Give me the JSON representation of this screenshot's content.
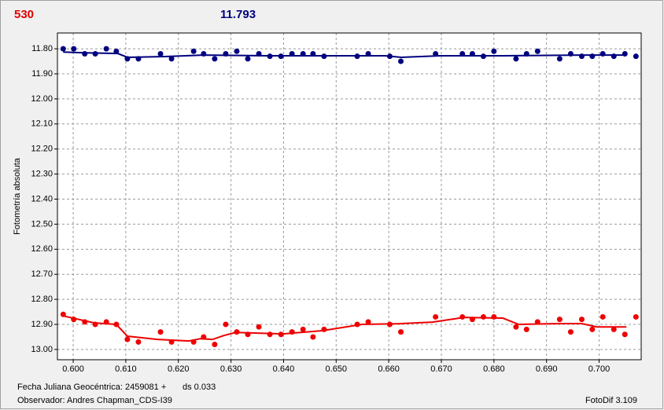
{
  "chart_data": {
    "type": "scatter",
    "header_left": "530",
    "header_left_color": "#e00000",
    "header_right": "11.793",
    "header_right_color": "#00007f",
    "y_label": "Fotometría absoluta",
    "footer_date": "Fecha Juliana Geocéntrica: 2459081 +",
    "footer_ds": "ds 0.033",
    "footer_observer": "Observador: Andres Chapman_CDS-I39",
    "footer_software": "FotoDif 3.109",
    "xlim": [
      0.597,
      0.708
    ],
    "ylim": [
      13.041,
      11.737
    ],
    "grid": true,
    "xticks": [
      {
        "value": 0.6,
        "label": "0.600"
      },
      {
        "value": 0.61,
        "label": "0.610"
      },
      {
        "value": 0.62,
        "label": "0.620"
      },
      {
        "value": 0.63,
        "label": "0.630"
      },
      {
        "value": 0.64,
        "label": "0.640"
      },
      {
        "value": 0.65,
        "label": "0.650"
      },
      {
        "value": 0.66,
        "label": "0.660"
      },
      {
        "value": 0.67,
        "label": "0.670"
      },
      {
        "value": 0.68,
        "label": "0.680"
      },
      {
        "value": 0.69,
        "label": "0.690"
      },
      {
        "value": 0.7,
        "label": "0.700"
      }
    ],
    "yticks": [
      {
        "value": 11.8,
        "label": "11.80"
      },
      {
        "value": 11.9,
        "label": "11.90"
      },
      {
        "value": 12.0,
        "label": "12.00"
      },
      {
        "value": 12.1,
        "label": "12.10"
      },
      {
        "value": 12.2,
        "label": "12.20"
      },
      {
        "value": 12.3,
        "label": "12.30"
      },
      {
        "value": 12.4,
        "label": "12.40"
      },
      {
        "value": 12.5,
        "label": "12.50"
      },
      {
        "value": 12.6,
        "label": "12.60"
      },
      {
        "value": 12.7,
        "label": "12.70"
      },
      {
        "value": 12.8,
        "label": "12.80"
      },
      {
        "value": 12.9,
        "label": "12.90"
      },
      {
        "value": 13.0,
        "label": "13.00"
      }
    ],
    "series": [
      {
        "style": "markers",
        "color": "#00007f",
        "x": [
          0.5981,
          0.6001,
          0.6022,
          0.6042,
          0.6063,
          0.6082,
          0.6103,
          0.6124,
          0.6166,
          0.6187,
          0.6229,
          0.6248,
          0.6269,
          0.629,
          0.6311,
          0.6332,
          0.6353,
          0.6374,
          0.6395,
          0.6416,
          0.6437,
          0.6456,
          0.6477,
          0.654,
          0.6561,
          0.6602,
          0.6623,
          0.6689,
          0.674,
          0.6759,
          0.678,
          0.68,
          0.6842,
          0.6862,
          0.6883,
          0.6925,
          0.6946,
          0.6967,
          0.6987,
          0.7007,
          0.7028,
          0.7049,
          0.707
        ],
        "values": [
          11.8,
          11.8,
          11.82,
          11.82,
          11.8,
          11.81,
          11.84,
          11.84,
          11.82,
          11.84,
          11.81,
          11.82,
          11.84,
          11.82,
          11.81,
          11.84,
          11.82,
          11.83,
          11.83,
          11.82,
          11.82,
          11.82,
          11.83,
          11.83,
          11.82,
          11.83,
          11.85,
          11.82,
          11.82,
          11.82,
          11.83,
          11.81,
          11.84,
          11.82,
          11.81,
          11.84,
          11.82,
          11.83,
          11.83,
          11.82,
          11.83,
          11.82,
          11.83
        ]
      },
      {
        "style": "markers",
        "color": "#ee0000",
        "x": [
          0.5981,
          0.6001,
          0.6022,
          0.6042,
          0.6063,
          0.6082,
          0.6103,
          0.6124,
          0.6166,
          0.6187,
          0.6229,
          0.6248,
          0.6269,
          0.629,
          0.6311,
          0.6332,
          0.6353,
          0.6374,
          0.6395,
          0.6416,
          0.6437,
          0.6456,
          0.6477,
          0.654,
          0.6561,
          0.6602,
          0.6623,
          0.6689,
          0.674,
          0.6759,
          0.678,
          0.68,
          0.6842,
          0.6862,
          0.6883,
          0.6925,
          0.6946,
          0.6967,
          0.6987,
          0.7007,
          0.7028,
          0.7049,
          0.707
        ],
        "values": [
          12.86,
          12.88,
          12.89,
          12.9,
          12.89,
          12.9,
          12.96,
          12.97,
          12.93,
          12.97,
          12.97,
          12.95,
          12.98,
          12.9,
          12.93,
          12.94,
          12.91,
          12.94,
          12.94,
          12.93,
          12.92,
          12.95,
          12.92,
          12.9,
          12.89,
          12.9,
          12.93,
          12.87,
          12.87,
          12.88,
          12.87,
          12.87,
          12.91,
          12.92,
          12.89,
          12.88,
          12.93,
          12.88,
          12.92,
          12.87,
          12.92,
          12.94,
          12.87
        ]
      },
      {
        "style": "line",
        "color": "#00007f",
        "x": [
          0.5981,
          0.6022,
          0.6085,
          0.6103,
          0.6175,
          0.625,
          0.6369,
          0.6489,
          0.6593,
          0.6623,
          0.6698,
          0.6817,
          0.6967,
          0.7052
        ],
        "values": [
          11.813,
          11.816,
          11.819,
          11.834,
          11.831,
          11.825,
          11.828,
          11.828,
          11.828,
          11.834,
          11.828,
          11.828,
          11.825,
          11.825
        ]
      },
      {
        "style": "line",
        "color": "#ee0000",
        "x": [
          0.5981,
          0.604,
          0.6082,
          0.6103,
          0.616,
          0.622,
          0.6242,
          0.6265,
          0.6287,
          0.6309,
          0.6399,
          0.6474,
          0.6549,
          0.6623,
          0.6683,
          0.6743,
          0.6817,
          0.6847,
          0.6922,
          0.6967,
          0.6996,
          0.7052
        ],
        "values": [
          12.866,
          12.894,
          12.9,
          12.947,
          12.96,
          12.966,
          12.957,
          12.96,
          12.944,
          12.932,
          12.938,
          12.925,
          12.9,
          12.897,
          12.891,
          12.872,
          12.875,
          12.9,
          12.897,
          12.897,
          12.91,
          12.91
        ]
      }
    ]
  }
}
